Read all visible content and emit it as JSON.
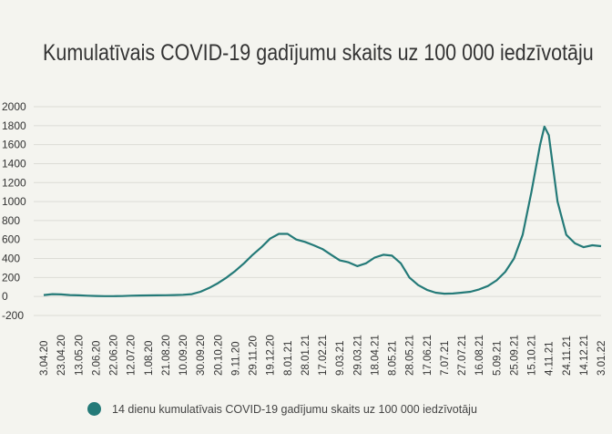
{
  "chart_data": {
    "type": "line",
    "title": "Kumulatīvais COVID-19 gadījumu skaits uz 100 000 iedzīvotāju",
    "xlabel": "",
    "ylabel": "",
    "ylim": [
      -200,
      2000
    ],
    "yticks": [
      -200,
      0,
      200,
      400,
      600,
      800,
      1000,
      1200,
      1400,
      1600,
      1800,
      2000
    ],
    "ytick_labels": [
      "-200",
      "0",
      "200",
      "400",
      "600",
      "800",
      "1000",
      "1200",
      "1400",
      "1600",
      "1800",
      "2000"
    ],
    "x_labels": [
      "3.04.20",
      "23.04.20",
      "13.05.20",
      "2.06.20",
      "22.06.20",
      "12.07.20",
      "1.08.20",
      "21.08.20",
      "10.09.20",
      "30.09.20",
      "20.10.20",
      "9.11.20",
      "29.11.20",
      "19.12.20",
      "8.01.21",
      "28.01.21",
      "17.02.21",
      "9.03.21",
      "29.03.21",
      "18.04.21",
      "8.05.21",
      "28.05.21",
      "17.06.21",
      "7.07.21",
      "27.07.21",
      "16.08.21",
      "5.09.21",
      "25.09.21",
      "15.10.21",
      "4.11.21",
      "24.11.21",
      "14.12.21",
      "3.01.22"
    ],
    "grid": true,
    "legend_position": "bottom",
    "colors": {
      "series": "#247a78",
      "grid": "#dcdcd6",
      "text": "#333333",
      "background": "#f4f4ef"
    },
    "series": [
      {
        "name": "14 dienu kumulatīvais COVID-19 gadījumu skaits uz 100 000 iedzīvotāju",
        "points": [
          [
            "3.04.20",
            15
          ],
          [
            "13.04.20",
            25
          ],
          [
            "23.04.20",
            22
          ],
          [
            "3.05.20",
            15
          ],
          [
            "13.05.20",
            12
          ],
          [
            "23.05.20",
            8
          ],
          [
            "2.06.20",
            6
          ],
          [
            "12.06.20",
            4
          ],
          [
            "22.06.20",
            4
          ],
          [
            "2.07.20",
            5
          ],
          [
            "12.07.20",
            8
          ],
          [
            "22.07.20",
            10
          ],
          [
            "1.08.20",
            11
          ],
          [
            "11.08.20",
            12
          ],
          [
            "21.08.20",
            13
          ],
          [
            "31.08.20",
            15
          ],
          [
            "10.09.20",
            18
          ],
          [
            "20.09.20",
            25
          ],
          [
            "30.09.20",
            50
          ],
          [
            "10.10.20",
            90
          ],
          [
            "20.10.20",
            140
          ],
          [
            "30.10.20",
            200
          ],
          [
            "9.11.20",
            270
          ],
          [
            "19.11.20",
            350
          ],
          [
            "29.11.20",
            440
          ],
          [
            "9.12.20",
            520
          ],
          [
            "19.12.20",
            610
          ],
          [
            "29.12.20",
            660
          ],
          [
            "8.01.21",
            660
          ],
          [
            "18.01.21",
            600
          ],
          [
            "28.01.21",
            575
          ],
          [
            "7.02.21",
            540
          ],
          [
            "17.02.21",
            500
          ],
          [
            "27.02.21",
            440
          ],
          [
            "9.03.21",
            380
          ],
          [
            "19.03.21",
            360
          ],
          [
            "29.03.21",
            320
          ],
          [
            "8.04.21",
            350
          ],
          [
            "18.04.21",
            410
          ],
          [
            "28.04.21",
            440
          ],
          [
            "8.05.21",
            430
          ],
          [
            "18.05.21",
            350
          ],
          [
            "28.05.21",
            200
          ],
          [
            "7.06.21",
            120
          ],
          [
            "17.06.21",
            70
          ],
          [
            "27.06.21",
            40
          ],
          [
            "7.07.21",
            30
          ],
          [
            "17.07.21",
            32
          ],
          [
            "27.07.21",
            40
          ],
          [
            "6.08.21",
            50
          ],
          [
            "16.08.21",
            75
          ],
          [
            "26.08.21",
            110
          ],
          [
            "5.09.21",
            170
          ],
          [
            "15.09.21",
            260
          ],
          [
            "25.09.21",
            400
          ],
          [
            "5.10.21",
            650
          ],
          [
            "15.10.21",
            1100
          ],
          [
            "25.10.21",
            1600
          ],
          [
            "30.10.21",
            1790
          ],
          [
            "4.11.21",
            1700
          ],
          [
            "14.11.21",
            1000
          ],
          [
            "24.11.21",
            650
          ],
          [
            "4.12.21",
            560
          ],
          [
            "14.12.21",
            520
          ],
          [
            "24.12.21",
            540
          ],
          [
            "3.01.22",
            530
          ]
        ]
      }
    ]
  }
}
